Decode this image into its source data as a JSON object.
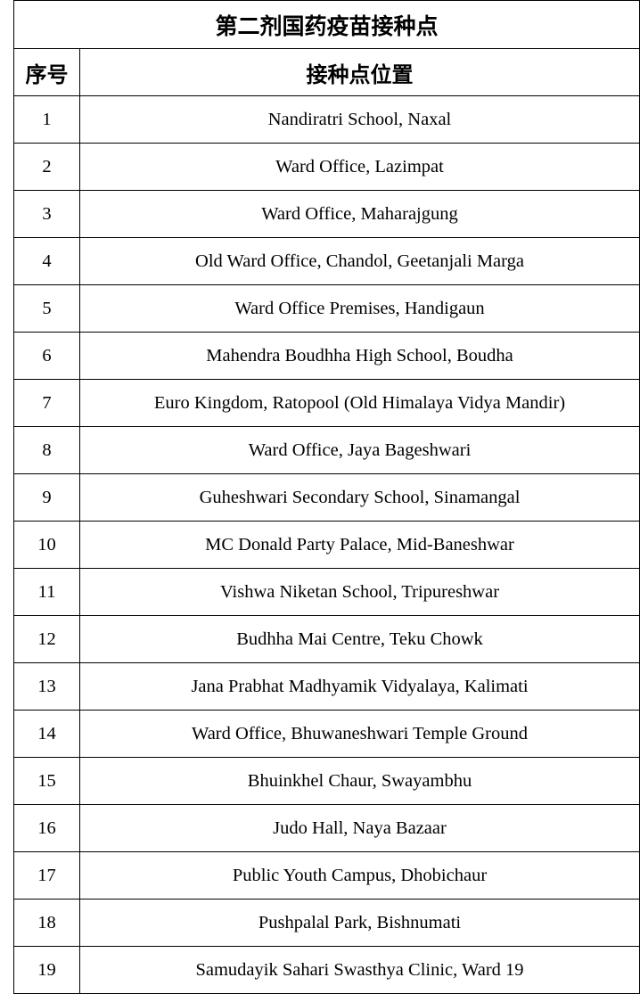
{
  "title": "第二剂国药疫苗接种点",
  "headers": {
    "number": "序号",
    "location": "接种点位置"
  },
  "rows": [
    {
      "n": "1",
      "loc": "Nandiratri School, Naxal"
    },
    {
      "n": "2",
      "loc": "Ward Office, Lazimpat"
    },
    {
      "n": "3",
      "loc": "Ward Office, Maharajgung"
    },
    {
      "n": "4",
      "loc": "Old Ward Office, Chandol, Geetanjali Marga"
    },
    {
      "n": "5",
      "loc": "Ward Office Premises, Handigaun"
    },
    {
      "n": "6",
      "loc": "Mahendra Boudhha High School, Boudha"
    },
    {
      "n": "7",
      "loc": "Euro Kingdom, Ratopool (Old Himalaya Vidya Mandir)"
    },
    {
      "n": "8",
      "loc": "Ward Office, Jaya Bageshwari"
    },
    {
      "n": "9",
      "loc": "Guheshwari Secondary School, Sinamangal"
    },
    {
      "n": "10",
      "loc": "MC Donald Party Palace, Mid-Baneshwar"
    },
    {
      "n": "11",
      "loc": "Vishwa Niketan School, Tripureshwar"
    },
    {
      "n": "12",
      "loc": "Budhha Mai Centre, Teku Chowk"
    },
    {
      "n": "13",
      "loc": "Jana Prabhat Madhyamik Vidyalaya, Kalimati"
    },
    {
      "n": "14",
      "loc": "Ward Office, Bhuwaneshwari Temple Ground"
    },
    {
      "n": "15",
      "loc": "Bhuinkhel Chaur, Swayambhu"
    },
    {
      "n": "16",
      "loc": "Judo Hall, Naya Bazaar"
    },
    {
      "n": "17",
      "loc": "Public Youth Campus, Dhobichaur"
    },
    {
      "n": "18",
      "loc": "Pushpalal Park, Bishnumati"
    },
    {
      "n": "19",
      "loc": "Samudayik Sahari Swasthya Clinic, Ward 19"
    }
  ]
}
